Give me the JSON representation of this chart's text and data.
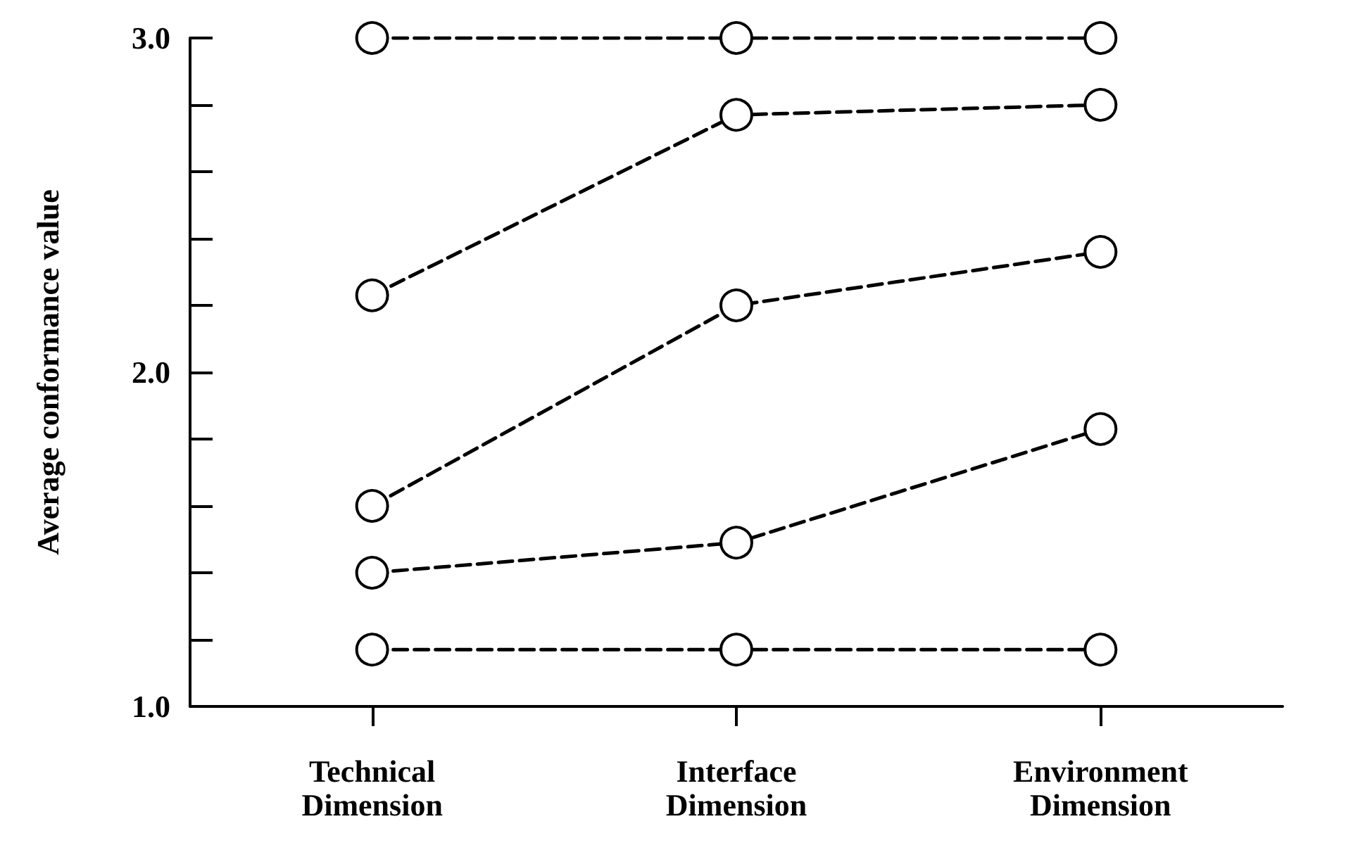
{
  "chart_data": {
    "type": "line",
    "ylabel": "Average conformance value",
    "categories": [
      "Technical\nDimension",
      "Interface\nDimension",
      "Environment\nDimension"
    ],
    "series": [
      {
        "color": "#000000",
        "values": [
          3.0,
          3.0,
          3.0
        ]
      },
      {
        "color": "#000000",
        "values": [
          2.23,
          2.77,
          2.8
        ]
      },
      {
        "color": "#000000",
        "values": [
          1.6,
          2.2,
          2.36
        ]
      },
      {
        "color": "#000000",
        "values": [
          1.4,
          1.49,
          1.83
        ]
      },
      {
        "color": "#000000",
        "values": [
          1.17,
          1.17,
          1.17
        ]
      }
    ],
    "ylim": [
      1,
      3
    ],
    "yticks": [
      {
        "value": 1,
        "label": "1.0"
      },
      {
        "value": 1.2,
        "label": null
      },
      {
        "value": 1.4,
        "label": null
      },
      {
        "value": 1.6,
        "label": null
      },
      {
        "value": 1.8,
        "label": null
      },
      {
        "value": 2,
        "label": "2.0"
      },
      {
        "value": 2.2,
        "label": null
      },
      {
        "value": 2.4,
        "label": null
      },
      {
        "value": 2.6,
        "label": null
      },
      {
        "value": 2.8,
        "label": null
      },
      {
        "value": 3,
        "label": "3.0"
      }
    ],
    "grid": false,
    "marker": "circle",
    "line_style": "dashed"
  }
}
